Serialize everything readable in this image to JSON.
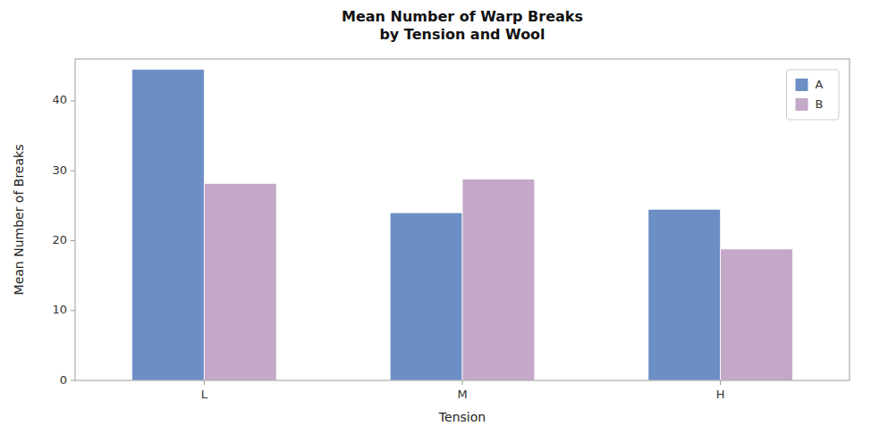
{
  "chart_data": {
    "type": "bar",
    "title": "Mean Number of Warp Breaks\nby Tension and Wool",
    "xlabel": "Tension",
    "ylabel": "Mean Number of Breaks",
    "categories": [
      "L",
      "M",
      "H"
    ],
    "series": [
      {
        "name": "A",
        "color": "#6B8EC4",
        "values": [
          44.5,
          24.0,
          24.5
        ]
      },
      {
        "name": "B",
        "color": "#C4A8C8",
        "values": [
          28.2,
          28.8,
          18.8
        ]
      }
    ],
    "ylim": [
      0,
      46
    ],
    "yticks": [
      0,
      10,
      20,
      30,
      40
    ],
    "grid": false,
    "legend": "upper right"
  }
}
